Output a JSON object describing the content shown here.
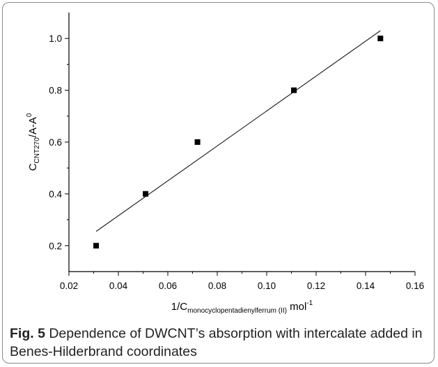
{
  "chart_data": {
    "type": "scatter",
    "title": "",
    "xlabel": {
      "main": "1/C",
      "sub": "monocyclopentadienylferrum (II)",
      "after": " mol",
      "sup": "-1"
    },
    "ylabel": {
      "main": "C",
      "sub": "CNT270",
      "after": "/A-A",
      "sup": "0"
    },
    "xlim": [
      0.02,
      0.16
    ],
    "ylim": [
      0.1,
      1.1
    ],
    "xticks": [
      0.02,
      0.04,
      0.06,
      0.08,
      0.1,
      0.12,
      0.14,
      0.16
    ],
    "xtick_labels": [
      "0.02",
      "0.04",
      "0.06",
      "0.08",
      "0.10",
      "0.12",
      "0.14",
      "0.16"
    ],
    "yticks": [
      0.2,
      0.4,
      0.6,
      0.8,
      1.0
    ],
    "ytick_labels": [
      "0.2",
      "0.4",
      "0.6",
      "0.8",
      "1.0"
    ],
    "grid": false,
    "legend": "none",
    "series": [
      {
        "marker": "square",
        "color": "#000000",
        "points": [
          {
            "x": 0.031,
            "y": 0.2
          },
          {
            "x": 0.051,
            "y": 0.4
          },
          {
            "x": 0.072,
            "y": 0.6
          },
          {
            "x": 0.111,
            "y": 0.8
          },
          {
            "x": 0.146,
            "y": 1.0
          }
        ]
      }
    ],
    "fit_line": {
      "x1": 0.031,
      "y1": 0.255,
      "x2": 0.146,
      "y2": 1.03,
      "color": "#000000"
    }
  },
  "caption": {
    "label": "Fig. 5",
    "text": " Dependence of DWCNT’s absorption with intercalate added in Benes-Hilderbrand coordinates"
  }
}
